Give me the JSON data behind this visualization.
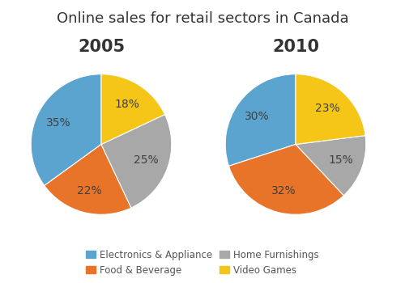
{
  "title": "Online sales for retail sectors in Canada",
  "title_fontsize": 13,
  "year_labels": [
    "2005",
    "2010"
  ],
  "year_fontsize": 15,
  "categories": [
    "Electronics & Appliance",
    "Food & Beverage",
    "Home Furnishings",
    "Video Games"
  ],
  "colors": [
    "#5BA4CF",
    "#E8742A",
    "#A8A8A8",
    "#F5C518"
  ],
  "values_2005": [
    35,
    22,
    25,
    18
  ],
  "values_2010": [
    30,
    32,
    15,
    23
  ],
  "legend_labels": [
    "Electronics & Appliance",
    "Food & Beverage",
    "Home Furnishings",
    "Video Games"
  ],
  "pct_fontsize": 10,
  "pct_color": "#404040",
  "background_color": "#ffffff",
  "startangle_2005": 90,
  "startangle_2010": 90
}
